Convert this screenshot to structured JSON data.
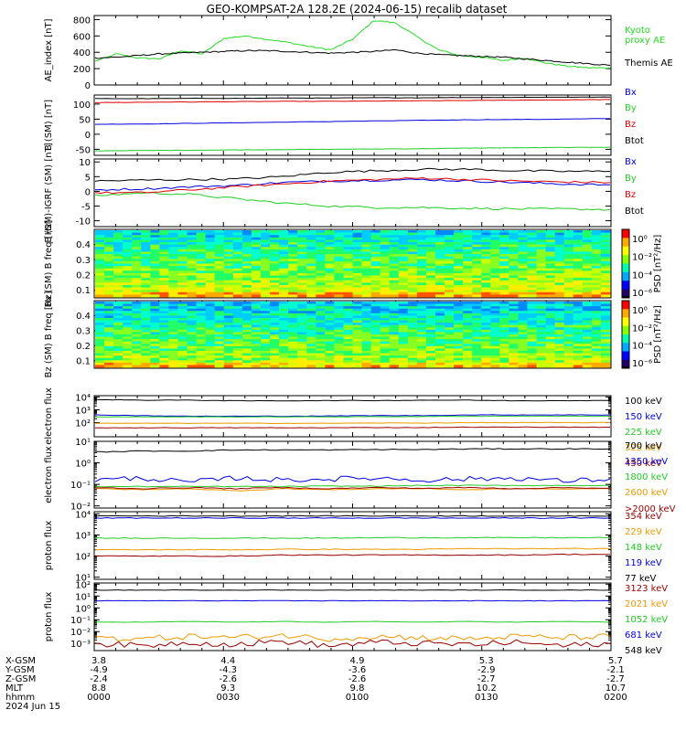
{
  "title": "GEO-KOMPSAT-2A 128.2E (2024-06-15) recalib dataset",
  "chart_data": [
    {
      "type": "line",
      "ylabel": "AE_index [nT]",
      "yticks": [
        "0",
        "200",
        "400",
        "600",
        "800"
      ],
      "ylim": [
        0,
        850
      ],
      "x": [
        "00:00",
        "00:05",
        "00:10",
        "00:15",
        "00:20",
        "00:25",
        "00:30",
        "00:35",
        "00:40",
        "00:45",
        "00:50",
        "00:55",
        "01:00",
        "01:05",
        "01:10",
        "01:15",
        "01:20",
        "01:25",
        "01:30",
        "01:35",
        "01:40",
        "01:45",
        "01:50",
        "01:55",
        "02:00"
      ],
      "series": [
        {
          "name": "Kyoto proxy AE",
          "color": "#22dd22",
          "values": [
            290,
            380,
            330,
            320,
            420,
            380,
            570,
            600,
            560,
            520,
            470,
            430,
            560,
            790,
            760,
            590,
            430,
            360,
            340,
            300,
            330,
            270,
            230,
            210,
            210
          ]
        },
        {
          "name": "Themis AE",
          "color": "#000000",
          "values": [
            330,
            340,
            360,
            380,
            390,
            400,
            410,
            420,
            420,
            410,
            400,
            390,
            400,
            410,
            430,
            390,
            370,
            360,
            350,
            340,
            320,
            300,
            280,
            260,
            240
          ]
        }
      ],
      "legend": [
        "Kyoto",
        "proxy AE",
        "Themis AE"
      ]
    },
    {
      "type": "line",
      "ylabel": "B (SM) [nT]",
      "yticks": [
        "-50",
        "0",
        "50",
        "100"
      ],
      "ylim": [
        -70,
        130
      ],
      "series": [
        {
          "name": "Bx",
          "color": "#0000dd",
          "values": [
            33,
            34,
            36,
            38,
            40,
            42,
            44,
            46,
            48,
            49,
            50,
            52
          ]
        },
        {
          "name": "By",
          "color": "#22cc22",
          "values": [
            -55,
            -54,
            -53,
            -52,
            -51,
            -50,
            -49,
            -48,
            -46,
            -45,
            -44,
            -43
          ]
        },
        {
          "name": "Bz",
          "color": "#dd0000",
          "values": [
            105,
            106,
            107,
            108,
            109,
            109,
            110,
            111,
            112,
            113,
            114,
            115
          ]
        },
        {
          "name": "Btot",
          "color": "#000000",
          "values": [
            118,
            118,
            119,
            119,
            120,
            120,
            121,
            121,
            122,
            122,
            123,
            123
          ]
        }
      ],
      "legend": [
        "Bx",
        "By",
        "Bz",
        "Btot"
      ]
    },
    {
      "type": "line",
      "ylabel": "B (SM)-IGRF (SM) [nT]",
      "yticks": [
        "-10",
        "-5",
        "0",
        "5",
        "10"
      ],
      "ylim": [
        -12,
        11
      ],
      "series": [
        {
          "name": "Bx",
          "color": "#0000dd",
          "values": [
            0.5,
            0.8,
            1.5,
            2.0,
            3.0,
            3.5,
            3.8,
            4.0,
            3.5,
            3.0,
            2.5,
            2.2
          ]
        },
        {
          "name": "By",
          "color": "#22cc22",
          "values": [
            -1.5,
            -0.5,
            -1.0,
            -2.5,
            -4.0,
            -5.0,
            -5.5,
            -5.5,
            -5.8,
            -6.0,
            -6.0,
            -6.2
          ]
        },
        {
          "name": "Bz",
          "color": "#dd0000",
          "values": [
            -0.5,
            -0.5,
            0.5,
            1.5,
            2.5,
            3.5,
            4.0,
            4.5,
            4.0,
            3.5,
            3.2,
            3.0
          ]
        },
        {
          "name": "Btot",
          "color": "#000000",
          "values": [
            3.5,
            3.8,
            4.0,
            4.2,
            5.0,
            6.5,
            7.0,
            7.5,
            7.5,
            7.0,
            6.8,
            6.8
          ]
        }
      ],
      "legend": [
        "Bx",
        "By",
        "Bz",
        "Btot"
      ]
    },
    {
      "type": "heatmap",
      "ylabel": "Bx (SM) B freq [Hz]",
      "yticks": [
        "0.1",
        "0.2",
        "0.3",
        "0.4"
      ],
      "ylim": [
        0.05,
        0.5
      ],
      "colorbar_label": "PSD [nT²/Hz]",
      "colorbar_ticks": [
        "10⁰",
        "10⁻²",
        "10⁻⁴",
        "10⁻⁶"
      ]
    },
    {
      "type": "heatmap",
      "ylabel": "Bz (SM) B freq [Hz]",
      "yticks": [
        "0.1",
        "0.2",
        "0.3",
        "0.4"
      ],
      "ylim": [
        0.05,
        0.5
      ],
      "colorbar_label": "PSD [nT²/Hz]",
      "colorbar_ticks": [
        "10⁰",
        "10⁻²",
        "10⁻⁴",
        "10⁻⁶"
      ]
    },
    {
      "type": "line",
      "scale": "log",
      "ylabel": "electron flux",
      "yticks": [
        "10²",
        "10³",
        "10⁴"
      ],
      "ylim_log10": [
        0.9,
        4.1
      ],
      "series": [
        {
          "name": "100 keV",
          "color": "#000000",
          "log10_values": [
            3.8,
            3.75,
            3.75,
            3.7,
            3.7,
            3.72,
            3.72,
            3.75,
            3.75,
            3.7,
            3.72,
            3.72
          ]
        },
        {
          "name": "150 keV",
          "color": "#0000dd",
          "log10_values": [
            2.6,
            2.55,
            2.5,
            2.5,
            2.5,
            2.52,
            2.55,
            2.55,
            2.6,
            2.6,
            2.6,
            2.6
          ]
        },
        {
          "name": "225 keV",
          "color": "#22cc22",
          "log10_values": [
            2.45,
            2.45,
            2.45,
            2.45,
            2.45,
            2.45,
            2.47,
            2.47,
            2.5,
            2.5,
            2.5,
            2.5
          ]
        },
        {
          "name": "325 keV",
          "color": "#ee9900",
          "log10_values": [
            1.95,
            1.95,
            1.95,
            1.95,
            1.95,
            1.95,
            1.97,
            1.97,
            2.0,
            2.0,
            2.0,
            2.0
          ]
        },
        {
          "name": "450 keV",
          "color": "#990000",
          "log10_values": [
            1.6,
            1.6,
            1.6,
            1.6,
            1.6,
            1.6,
            1.62,
            1.62,
            1.65,
            1.65,
            1.65,
            1.65
          ]
        }
      ],
      "legend": [
        "100 keV",
        "150 keV",
        "225 keV",
        "325 keV",
        "450 keV"
      ]
    },
    {
      "type": "line",
      "scale": "log",
      "ylabel": "electron flux",
      "yticks": [
        "10⁻²",
        "10⁻¹",
        "10⁰",
        "10¹"
      ],
      "ylim_log10": [
        -2.1,
        1.0
      ],
      "series": [
        {
          "name": "700 keV",
          "color": "#000000",
          "log10_values": [
            0.5,
            0.55,
            0.55,
            0.6,
            0.6,
            0.6,
            0.62,
            0.62,
            0.65,
            0.65,
            0.65,
            0.65
          ]
        },
        {
          "name": "1350 keV",
          "color": "#0000dd",
          "log10_values": [
            -0.8,
            -0.7,
            -0.9,
            -0.7,
            -0.8,
            -0.75,
            -0.7,
            -0.8,
            -0.75,
            -0.7,
            -0.85,
            -0.75
          ]
        },
        {
          "name": "1800 keV",
          "color": "#22cc22",
          "log10_values": [
            -1.1,
            -1.1,
            -1.1,
            -1.1,
            -1.1,
            -1.08,
            -1.08,
            -1.05,
            -1.05,
            -1.05,
            -1.05,
            -1.05
          ]
        },
        {
          "name": "2600 keV",
          "color": "#ee9900",
          "log10_values": [
            -1.2,
            -1.25,
            -1.2,
            -1.3,
            -1.2,
            -1.25,
            -1.2,
            -1.2,
            -1.25,
            -1.2,
            -1.22,
            -1.2
          ]
        },
        {
          "name": ">2000 keV",
          "color": "#990000",
          "log10_values": [
            -1.15,
            -1.2,
            -1.15,
            -1.2,
            -1.15,
            -1.2,
            -1.15,
            -1.18,
            -1.15,
            -1.2,
            -1.15,
            -1.18
          ]
        }
      ],
      "legend": [
        "700 keV",
        "1350 keV",
        "1800 keV",
        "2600 keV",
        ">2000 keV"
      ]
    },
    {
      "type": "line",
      "scale": "log",
      "ylabel": "proton flux",
      "yticks": [
        "10¹",
        "10²",
        "10³",
        "10⁴"
      ],
      "ylim_log10": [
        0.9,
        4.1
      ],
      "series": [
        {
          "name": "354 keV",
          "color": "#990000",
          "log10_values": [
            2.0,
            2.0,
            2.0,
            2.0,
            2.05,
            2.05,
            2.05,
            2.05,
            2.05,
            2.05,
            2.08,
            2.08
          ]
        },
        {
          "name": "229 keV",
          "color": "#ee9900",
          "log10_values": [
            2.3,
            2.3,
            2.3,
            2.3,
            2.32,
            2.32,
            2.32,
            2.32,
            2.35,
            2.35,
            2.35,
            2.35
          ]
        },
        {
          "name": "148 keV",
          "color": "#22cc22",
          "log10_values": [
            2.85,
            2.85,
            2.85,
            2.85,
            2.85,
            2.85,
            2.87,
            2.87,
            2.87,
            2.87,
            2.87,
            2.87
          ]
        },
        {
          "name": "119 keV",
          "color": "#0000dd",
          "log10_values": [
            3.8,
            3.8,
            3.8,
            3.8,
            3.8,
            3.8,
            3.8,
            3.8,
            3.8,
            3.8,
            3.8,
            3.8
          ]
        },
        {
          "name": "77 keV",
          "color": "#000000",
          "log10_values": [
            3.9,
            3.9,
            3.9,
            3.9,
            3.9,
            3.9,
            3.9,
            3.9,
            3.9,
            3.9,
            3.9,
            3.9
          ]
        }
      ],
      "legend": [
        "354 keV",
        "229 keV",
        "148 keV",
        "119 keV",
        "77 keV"
      ]
    },
    {
      "type": "line",
      "scale": "log",
      "ylabel": "proton flux",
      "yticks": [
        "10⁻³",
        "10⁻²",
        "10⁻¹",
        "10⁰",
        "10¹",
        "10²"
      ],
      "ylim_log10": [
        -3.6,
        2.1
      ],
      "series": [
        {
          "name": "3123 keV",
          "color": "#990000",
          "log10_values": [
            -3.0,
            -3.2,
            -2.9,
            -3.1,
            -2.8,
            -3.2,
            -2.9,
            -3.0,
            -3.1,
            -2.9,
            -3.2,
            -3.0
          ]
        },
        {
          "name": "2021 keV",
          "color": "#ee9900",
          "log10_values": [
            -2.5,
            -2.6,
            -2.4,
            -2.5,
            -2.3,
            -2.6,
            -2.4,
            -2.5,
            -2.6,
            -2.4,
            -2.5,
            -2.4
          ]
        },
        {
          "name": "1052 keV",
          "color": "#22cc22",
          "log10_values": [
            -1.2,
            -1.2,
            -1.15,
            -1.2,
            -1.15,
            -1.2,
            -1.15,
            -1.2,
            -1.15,
            -1.2,
            -1.15,
            -1.2
          ]
        },
        {
          "name": "681 keV",
          "color": "#0000dd",
          "log10_values": [
            0.6,
            0.6,
            0.6,
            0.6,
            0.6,
            0.6,
            0.6,
            0.6,
            0.6,
            0.6,
            0.6,
            0.6
          ]
        },
        {
          "name": "548 keV",
          "color": "#000000",
          "log10_values": [
            1.5,
            1.5,
            1.5,
            1.5,
            1.5,
            1.5,
            1.5,
            1.5,
            1.5,
            1.5,
            1.5,
            1.5
          ]
        }
      ],
      "legend": [
        "3123 keV",
        "2021 keV",
        "1052 keV",
        "681 keV",
        "548 keV"
      ]
    }
  ],
  "x_axis": {
    "row_labels": [
      "X-GSM",
      "Y-GSM",
      "Z-GSM",
      "MLT",
      "hhmm",
      "2024 Jun 15"
    ],
    "ticks": [
      {
        "values": [
          "3.8",
          "-4.9",
          "-2.4",
          "8.8",
          "0000"
        ]
      },
      {
        "values": [
          "4.4",
          "-4.3",
          "-2.6",
          "9.3",
          "0030"
        ]
      },
      {
        "values": [
          "4.9",
          "-3.6",
          "-2.6",
          "9.8",
          "0100"
        ]
      },
      {
        "values": [
          "5.3",
          "-2.9",
          "-2.7",
          "10.2",
          "0130"
        ]
      },
      {
        "values": [
          "5.7",
          "-2.1",
          "-2.7",
          "10.7",
          "0200"
        ]
      }
    ]
  }
}
